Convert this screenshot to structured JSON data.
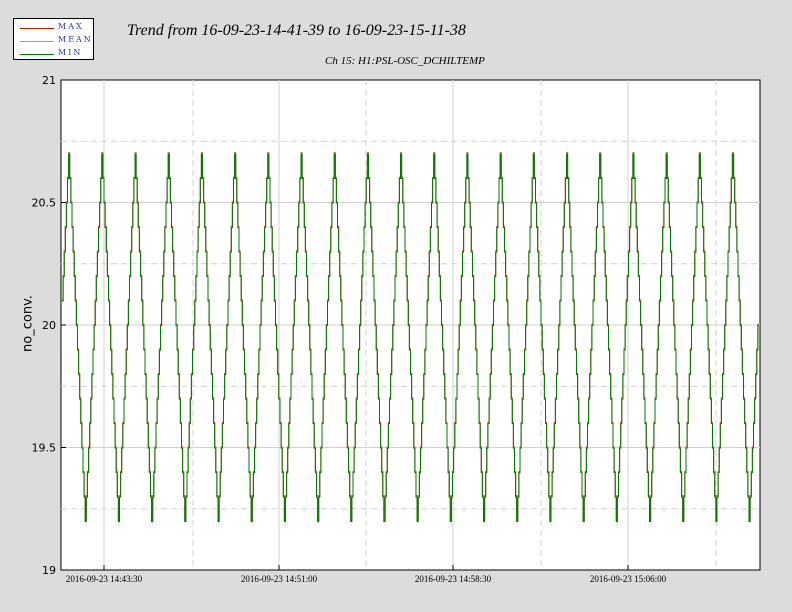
{
  "legend": {
    "items": [
      {
        "label": "MAX",
        "color": "#aa2200"
      },
      {
        "label": "MEAN",
        "color": "#e08080"
      },
      {
        "label": "MIN",
        "color": "#007700"
      }
    ]
  },
  "chart_data": {
    "type": "line",
    "title": "Trend from 16-09-23-14-41-39 to 16-09-23-15-11-38",
    "subtitle": "Ch 15: H1:PSL-OSC_DCHILTEMP",
    "xlabel": "",
    "ylabel": "no_conv.",
    "ylim": [
      19,
      21
    ],
    "yticks": [
      "19",
      "19.5",
      "20",
      "20.5",
      "21"
    ],
    "xticks": [
      "2016-09-23 14:43:30",
      "2016-09-23 14:51:00",
      "2016-09-23 14:58:30",
      "2016-09-23 15:06:00"
    ],
    "grid": true,
    "signal": {
      "min": 19.2,
      "max": 20.7,
      "step": 0.1,
      "cycles": 21,
      "description_values": "oscillating staircase between min and max"
    },
    "series": [
      {
        "name": "MAX"
      },
      {
        "name": "MEAN"
      },
      {
        "name": "MIN"
      }
    ]
  }
}
